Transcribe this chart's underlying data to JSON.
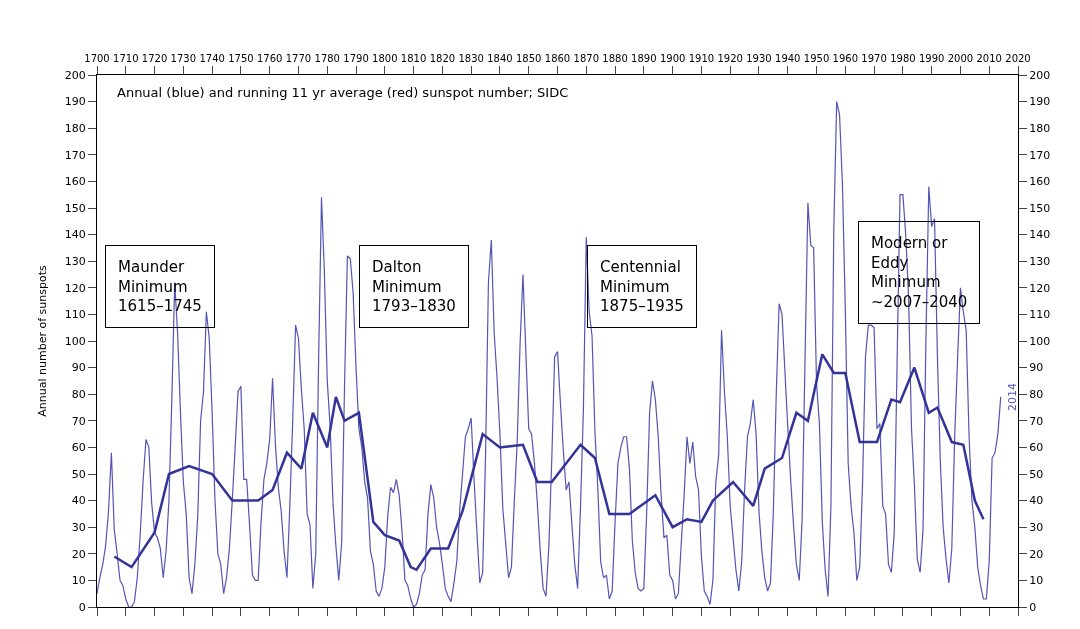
{
  "chart_data": {
    "type": "line",
    "title": "Annual (blue) and running 11 yr average (red) sunspot number; SIDC",
    "ylabel": "Annual number of sunspots",
    "xlim": [
      1700,
      2020
    ],
    "xticks": [
      1700,
      1710,
      1720,
      1730,
      1740,
      1750,
      1760,
      1770,
      1780,
      1790,
      1800,
      1810,
      1820,
      1830,
      1840,
      1850,
      1860,
      1870,
      1880,
      1890,
      1900,
      1910,
      1920,
      1930,
      1940,
      1950,
      1960,
      1970,
      1980,
      1990,
      2000,
      2010,
      2020
    ],
    "ylim": [
      0,
      200
    ],
    "yticks": [
      0,
      10,
      20,
      30,
      40,
      50,
      60,
      70,
      80,
      90,
      100,
      110,
      120,
      130,
      140,
      150,
      160,
      170,
      180,
      190,
      200
    ],
    "y2lim": [
      0,
      200
    ],
    "y2ticks": [
      0,
      10,
      20,
      30,
      40,
      50,
      60,
      70,
      80,
      90,
      100,
      110,
      120,
      130,
      140,
      150,
      160,
      170,
      180,
      190,
      200
    ],
    "legend": false,
    "marker": "none",
    "line_style": "solid",
    "series": [
      {
        "color": "#5555b5",
        "x": [
          1700,
          1701,
          1702,
          1703,
          1704,
          1705,
          1706,
          1707,
          1708,
          1709,
          1710,
          1711,
          1712,
          1713,
          1714,
          1715,
          1716,
          1717,
          1718,
          1719,
          1720,
          1721,
          1722,
          1723,
          1724,
          1725,
          1726,
          1727,
          1728,
          1729,
          1730,
          1731,
          1732,
          1733,
          1734,
          1735,
          1736,
          1737,
          1738,
          1739,
          1740,
          1741,
          1742,
          1743,
          1744,
          1745,
          1746,
          1747,
          1748,
          1749,
          1750,
          1751,
          1752,
          1753,
          1754,
          1755,
          1756,
          1757,
          1758,
          1759,
          1760,
          1761,
          1762,
          1763,
          1764,
          1765,
          1766,
          1767,
          1768,
          1769,
          1770,
          1771,
          1772,
          1773,
          1774,
          1775,
          1776,
          1777,
          1778,
          1779,
          1780,
          1781,
          1782,
          1783,
          1784,
          1785,
          1786,
          1787,
          1788,
          1789,
          1790,
          1791,
          1792,
          1793,
          1794,
          1795,
          1796,
          1797,
          1798,
          1799,
          1800,
          1801,
          1802,
          1803,
          1804,
          1805,
          1806,
          1807,
          1808,
          1809,
          1810,
          1811,
          1812,
          1813,
          1814,
          1815,
          1816,
          1817,
          1818,
          1819,
          1820,
          1821,
          1822,
          1823,
          1824,
          1825,
          1826,
          1827,
          1828,
          1829,
          1830,
          1831,
          1832,
          1833,
          1834,
          1835,
          1836,
          1837,
          1838,
          1839,
          1840,
          1841,
          1842,
          1843,
          1844,
          1845,
          1846,
          1847,
          1848,
          1849,
          1850,
          1851,
          1852,
          1853,
          1854,
          1855,
          1856,
          1857,
          1858,
          1859,
          1860,
          1861,
          1862,
          1863,
          1864,
          1865,
          1866,
          1867,
          1868,
          1869,
          1870,
          1871,
          1872,
          1873,
          1874,
          1875,
          1876,
          1877,
          1878,
          1879,
          1880,
          1881,
          1882,
          1883,
          1884,
          1885,
          1886,
          1887,
          1888,
          1889,
          1890,
          1891,
          1892,
          1893,
          1894,
          1895,
          1896,
          1897,
          1898,
          1899,
          1900,
          1901,
          1902,
          1903,
          1904,
          1905,
          1906,
          1907,
          1908,
          1909,
          1910,
          1911,
          1912,
          1913,
          1914,
          1915,
          1916,
          1917,
          1918,
          1919,
          1920,
          1921,
          1922,
          1923,
          1924,
          1925,
          1926,
          1927,
          1928,
          1929,
          1930,
          1931,
          1932,
          1933,
          1934,
          1935,
          1936,
          1937,
          1938,
          1939,
          1940,
          1941,
          1942,
          1943,
          1944,
          1945,
          1946,
          1947,
          1948,
          1949,
          1950,
          1951,
          1952,
          1953,
          1954,
          1955,
          1956,
          1957,
          1958,
          1959,
          1960,
          1961,
          1962,
          1963,
          1964,
          1965,
          1966,
          1967,
          1968,
          1969,
          1970,
          1971,
          1972,
          1973,
          1974,
          1975,
          1976,
          1977,
          1978,
          1979,
          1980,
          1981,
          1982,
          1983,
          1984,
          1985,
          1986,
          1987,
          1988,
          1989,
          1990,
          1991,
          1992,
          1993,
          1994,
          1995,
          1996,
          1997,
          1998,
          1999,
          2000,
          2001,
          2002,
          2003,
          2004,
          2005,
          2006,
          2007,
          2008,
          2009,
          2010,
          2011,
          2012,
          2013,
          2014
        ],
        "values": [
          5,
          11,
          16,
          23,
          36,
          58,
          29,
          20,
          10,
          8,
          3,
          0,
          0,
          2,
          11,
          27,
          47,
          63,
          60,
          39,
          28,
          26,
          22,
          11,
          21,
          40,
          78,
          122,
          103,
          73,
          47,
          35,
          11,
          5,
          16,
          34,
          70,
          81,
          111,
          101,
          73,
          40,
          20,
          16,
          5,
          11,
          22,
          40,
          60,
          81,
          83,
          48,
          48,
          31,
          12,
          10,
          10,
          32,
          48,
          54,
          63,
          86,
          61,
          45,
          36,
          21,
          11,
          38,
          70,
          106,
          101,
          82,
          67,
          35,
          31,
          7,
          20,
          93,
          154,
          126,
          85,
          68,
          39,
          23,
          10,
          24,
          83,
          132,
          131,
          118,
          90,
          67,
          60,
          47,
          41,
          21,
          16,
          6,
          4,
          7,
          15,
          34,
          45,
          43,
          48,
          42,
          28,
          10,
          8,
          3,
          0,
          1,
          5,
          12,
          14,
          35,
          46,
          41,
          30,
          24,
          16,
          7,
          4,
          2,
          9,
          17,
          36,
          50,
          64,
          67,
          71,
          48,
          28,
          9,
          13,
          57,
          122,
          138,
          103,
          86,
          65,
          37,
          24,
          11,
          15,
          40,
          62,
          99,
          125,
          96,
          67,
          65,
          54,
          39,
          21,
          7,
          4,
          23,
          55,
          94,
          96,
          77,
          59,
          44,
          47,
          31,
          16,
          7,
          38,
          74,
          139,
          111,
          102,
          66,
          45,
          17,
          11,
          12,
          3,
          6,
          32,
          54,
          60,
          64,
          64,
          52,
          25,
          13,
          7,
          6,
          7,
          36,
          73,
          85,
          78,
          64,
          42,
          26,
          27,
          12,
          10,
          3,
          5,
          24,
          42,
          64,
          54,
          62,
          49,
          44,
          19,
          6,
          4,
          1,
          10,
          47,
          57,
          104,
          81,
          64,
          38,
          26,
          14,
          6,
          17,
          44,
          64,
          69,
          78,
          65,
          36,
          21,
          11,
          6,
          9,
          36,
          80,
          114,
          110,
          89,
          68,
          48,
          31,
          16,
          10,
          33,
          93,
          152,
          136,
          135,
          84,
          69,
          32,
          14,
          4,
          38,
          142,
          190,
          185,
          159,
          112,
          54,
          38,
          28,
          10,
          15,
          47,
          94,
          106,
          106,
          105,
          67,
          69,
          38,
          35,
          16,
          13,
          28,
          93,
          155,
          155,
          140,
          116,
          67,
          46,
          18,
          13,
          29,
          100,
          158,
          143,
          146,
          94,
          55,
          30,
          18,
          9,
          22,
          64,
          93,
          120,
          111,
          104,
          64,
          40,
          30,
          15,
          8,
          3,
          3,
          17,
          56,
          58,
          65,
          79
        ]
      },
      {
        "color": "#333399",
        "x": [
          1706,
          1712,
          1720,
          1725,
          1732,
          1740,
          1747,
          1756,
          1761,
          1766,
          1771,
          1775,
          1780,
          1783,
          1786,
          1791,
          1796,
          1800,
          1805,
          1809,
          1811,
          1816,
          1822,
          1827,
          1834,
          1840,
          1848,
          1853,
          1858,
          1868,
          1873,
          1878,
          1885,
          1894,
          1900,
          1905,
          1910,
          1914,
          1921,
          1928,
          1932,
          1938,
          1943,
          1947,
          1952,
          1956,
          1960,
          1965,
          1971,
          1976,
          1979,
          1984,
          1989,
          1992,
          1997,
          2001,
          2005,
          2008
        ],
        "values": [
          19,
          15,
          28,
          50,
          53,
          50,
          40,
          40,
          44,
          58,
          52,
          73,
          60,
          79,
          70,
          73,
          32,
          27,
          25,
          15,
          14,
          22,
          22,
          36,
          65,
          60,
          61,
          47,
          47,
          61,
          56,
          35,
          35,
          42,
          30,
          33,
          32,
          40,
          47,
          38,
          52,
          56,
          73,
          70,
          95,
          88,
          88,
          62,
          62,
          78,
          77,
          90,
          73,
          75,
          62,
          61,
          40,
          33
        ]
      }
    ],
    "annotations": [
      "Maunder\nMinimum\n1615–1745",
      "Dalton\nMinimum\n1793–1830",
      "Centennial\nMinimum\n1875–1935",
      "Modern or\nEddy\nMinimum\n~2007–2040",
      {
        "text": "2014",
        "x": 2014,
        "y": 79
      }
    ]
  }
}
